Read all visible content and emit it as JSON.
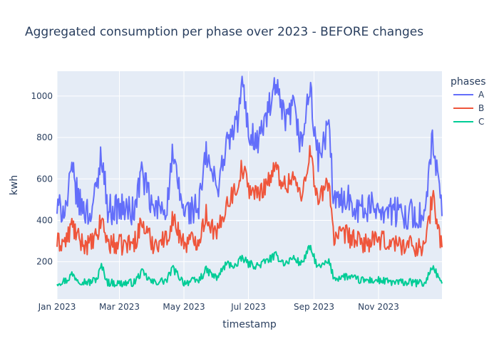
{
  "chart_data": {
    "type": "line",
    "title": "Aggregated consumption per phase over 2023 - BEFORE changes",
    "xlabel": "timestamp",
    "ylabel": "kwh",
    "legend_title": "phases",
    "legend_placement": "right",
    "grid": true,
    "plot_bg": "#e5ecf6",
    "xlim": [
      "2023-01-01",
      "2023-12-31"
    ],
    "ylim": [
      20,
      1120
    ],
    "x_ticks": [
      {
        "date": "2023-01-01",
        "label": "Jan 2023"
      },
      {
        "date": "2023-03-01",
        "label": "Mar 2023"
      },
      {
        "date": "2023-05-01",
        "label": "May 2023"
      },
      {
        "date": "2023-07-01",
        "label": "Jul 2023"
      },
      {
        "date": "2023-09-01",
        "label": "Sep 2023"
      },
      {
        "date": "2023-11-01",
        "label": "Nov 2023"
      }
    ],
    "y_ticks": [
      200,
      400,
      600,
      800,
      1000
    ],
    "series": [
      {
        "name": "A",
        "color": "#636efa",
        "points": [
          [
            "2023-01-01",
            450
          ],
          [
            "2023-01-10",
            470
          ],
          [
            "2023-01-15",
            640
          ],
          [
            "2023-01-22",
            480
          ],
          [
            "2023-02-01",
            430
          ],
          [
            "2023-02-08",
            560
          ],
          [
            "2023-02-12",
            740
          ],
          [
            "2023-02-18",
            450
          ],
          [
            "2023-03-01",
            460
          ],
          [
            "2023-03-15",
            440
          ],
          [
            "2023-03-22",
            640
          ],
          [
            "2023-04-01",
            450
          ],
          [
            "2023-04-15",
            470
          ],
          [
            "2023-04-20",
            700
          ],
          [
            "2023-05-01",
            440
          ],
          [
            "2023-05-15",
            460
          ],
          [
            "2023-05-22",
            720
          ],
          [
            "2023-06-01",
            550
          ],
          [
            "2023-06-10",
            760
          ],
          [
            "2023-06-20",
            860
          ],
          [
            "2023-06-25",
            1060
          ],
          [
            "2023-07-01",
            830
          ],
          [
            "2023-07-10",
            780
          ],
          [
            "2023-07-20",
            930
          ],
          [
            "2023-07-27",
            1040
          ],
          [
            "2023-08-05",
            860
          ],
          [
            "2023-08-12",
            950
          ],
          [
            "2023-08-20",
            760
          ],
          [
            "2023-08-28",
            1040
          ],
          [
            "2023-09-05",
            690
          ],
          [
            "2023-09-15",
            850
          ],
          [
            "2023-09-20",
            470
          ],
          [
            "2023-10-01",
            520
          ],
          [
            "2023-10-15",
            450
          ],
          [
            "2023-11-01",
            470
          ],
          [
            "2023-11-15",
            440
          ],
          [
            "2023-12-01",
            430
          ],
          [
            "2023-12-15",
            410
          ],
          [
            "2023-12-22",
            800
          ],
          [
            "2023-12-31",
            420
          ]
        ]
      },
      {
        "name": "B",
        "color": "#ef553b",
        "points": [
          [
            "2023-01-01",
            290
          ],
          [
            "2023-01-10",
            300
          ],
          [
            "2023-01-15",
            380
          ],
          [
            "2023-01-22",
            300
          ],
          [
            "2023-02-01",
            280
          ],
          [
            "2023-02-08",
            320
          ],
          [
            "2023-02-12",
            410
          ],
          [
            "2023-02-18",
            290
          ],
          [
            "2023-03-01",
            280
          ],
          [
            "2023-03-15",
            290
          ],
          [
            "2023-03-22",
            390
          ],
          [
            "2023-04-01",
            290
          ],
          [
            "2023-04-15",
            310
          ],
          [
            "2023-04-20",
            410
          ],
          [
            "2023-05-01",
            290
          ],
          [
            "2023-05-15",
            310
          ],
          [
            "2023-05-22",
            430
          ],
          [
            "2023-06-01",
            320
          ],
          [
            "2023-06-10",
            480
          ],
          [
            "2023-06-20",
            560
          ],
          [
            "2023-06-25",
            660
          ],
          [
            "2023-07-01",
            560
          ],
          [
            "2023-07-10",
            520
          ],
          [
            "2023-07-20",
            600
          ],
          [
            "2023-07-27",
            650
          ],
          [
            "2023-08-05",
            560
          ],
          [
            "2023-08-12",
            620
          ],
          [
            "2023-08-20",
            500
          ],
          [
            "2023-08-28",
            740
          ],
          [
            "2023-09-05",
            480
          ],
          [
            "2023-09-15",
            600
          ],
          [
            "2023-09-20",
            310
          ],
          [
            "2023-10-01",
            330
          ],
          [
            "2023-10-15",
            290
          ],
          [
            "2023-11-01",
            300
          ],
          [
            "2023-11-15",
            290
          ],
          [
            "2023-12-01",
            280
          ],
          [
            "2023-12-15",
            270
          ],
          [
            "2023-12-22",
            520
          ],
          [
            "2023-12-31",
            270
          ]
        ]
      },
      {
        "name": "C",
        "color": "#00cc96",
        "points": [
          [
            "2023-01-01",
            100
          ],
          [
            "2023-01-10",
            110
          ],
          [
            "2023-01-15",
            140
          ],
          [
            "2023-01-22",
            110
          ],
          [
            "2023-02-01",
            100
          ],
          [
            "2023-02-08",
            120
          ],
          [
            "2023-02-12",
            180
          ],
          [
            "2023-02-18",
            100
          ],
          [
            "2023-03-01",
            95
          ],
          [
            "2023-03-15",
            100
          ],
          [
            "2023-03-22",
            150
          ],
          [
            "2023-04-01",
            100
          ],
          [
            "2023-04-15",
            110
          ],
          [
            "2023-04-20",
            170
          ],
          [
            "2023-05-01",
            100
          ],
          [
            "2023-05-15",
            110
          ],
          [
            "2023-05-22",
            160
          ],
          [
            "2023-06-01",
            120
          ],
          [
            "2023-06-10",
            190
          ],
          [
            "2023-06-20",
            180
          ],
          [
            "2023-06-25",
            220
          ],
          [
            "2023-07-01",
            190
          ],
          [
            "2023-07-10",
            180
          ],
          [
            "2023-07-20",
            210
          ],
          [
            "2023-07-27",
            230
          ],
          [
            "2023-08-05",
            190
          ],
          [
            "2023-08-12",
            220
          ],
          [
            "2023-08-20",
            190
          ],
          [
            "2023-08-28",
            270
          ],
          [
            "2023-09-05",
            170
          ],
          [
            "2023-09-15",
            200
          ],
          [
            "2023-09-20",
            120
          ],
          [
            "2023-10-01",
            130
          ],
          [
            "2023-10-15",
            110
          ],
          [
            "2023-11-01",
            110
          ],
          [
            "2023-11-15",
            100
          ],
          [
            "2023-12-01",
            100
          ],
          [
            "2023-12-15",
            95
          ],
          [
            "2023-12-22",
            180
          ],
          [
            "2023-12-31",
            95
          ]
        ]
      }
    ]
  }
}
